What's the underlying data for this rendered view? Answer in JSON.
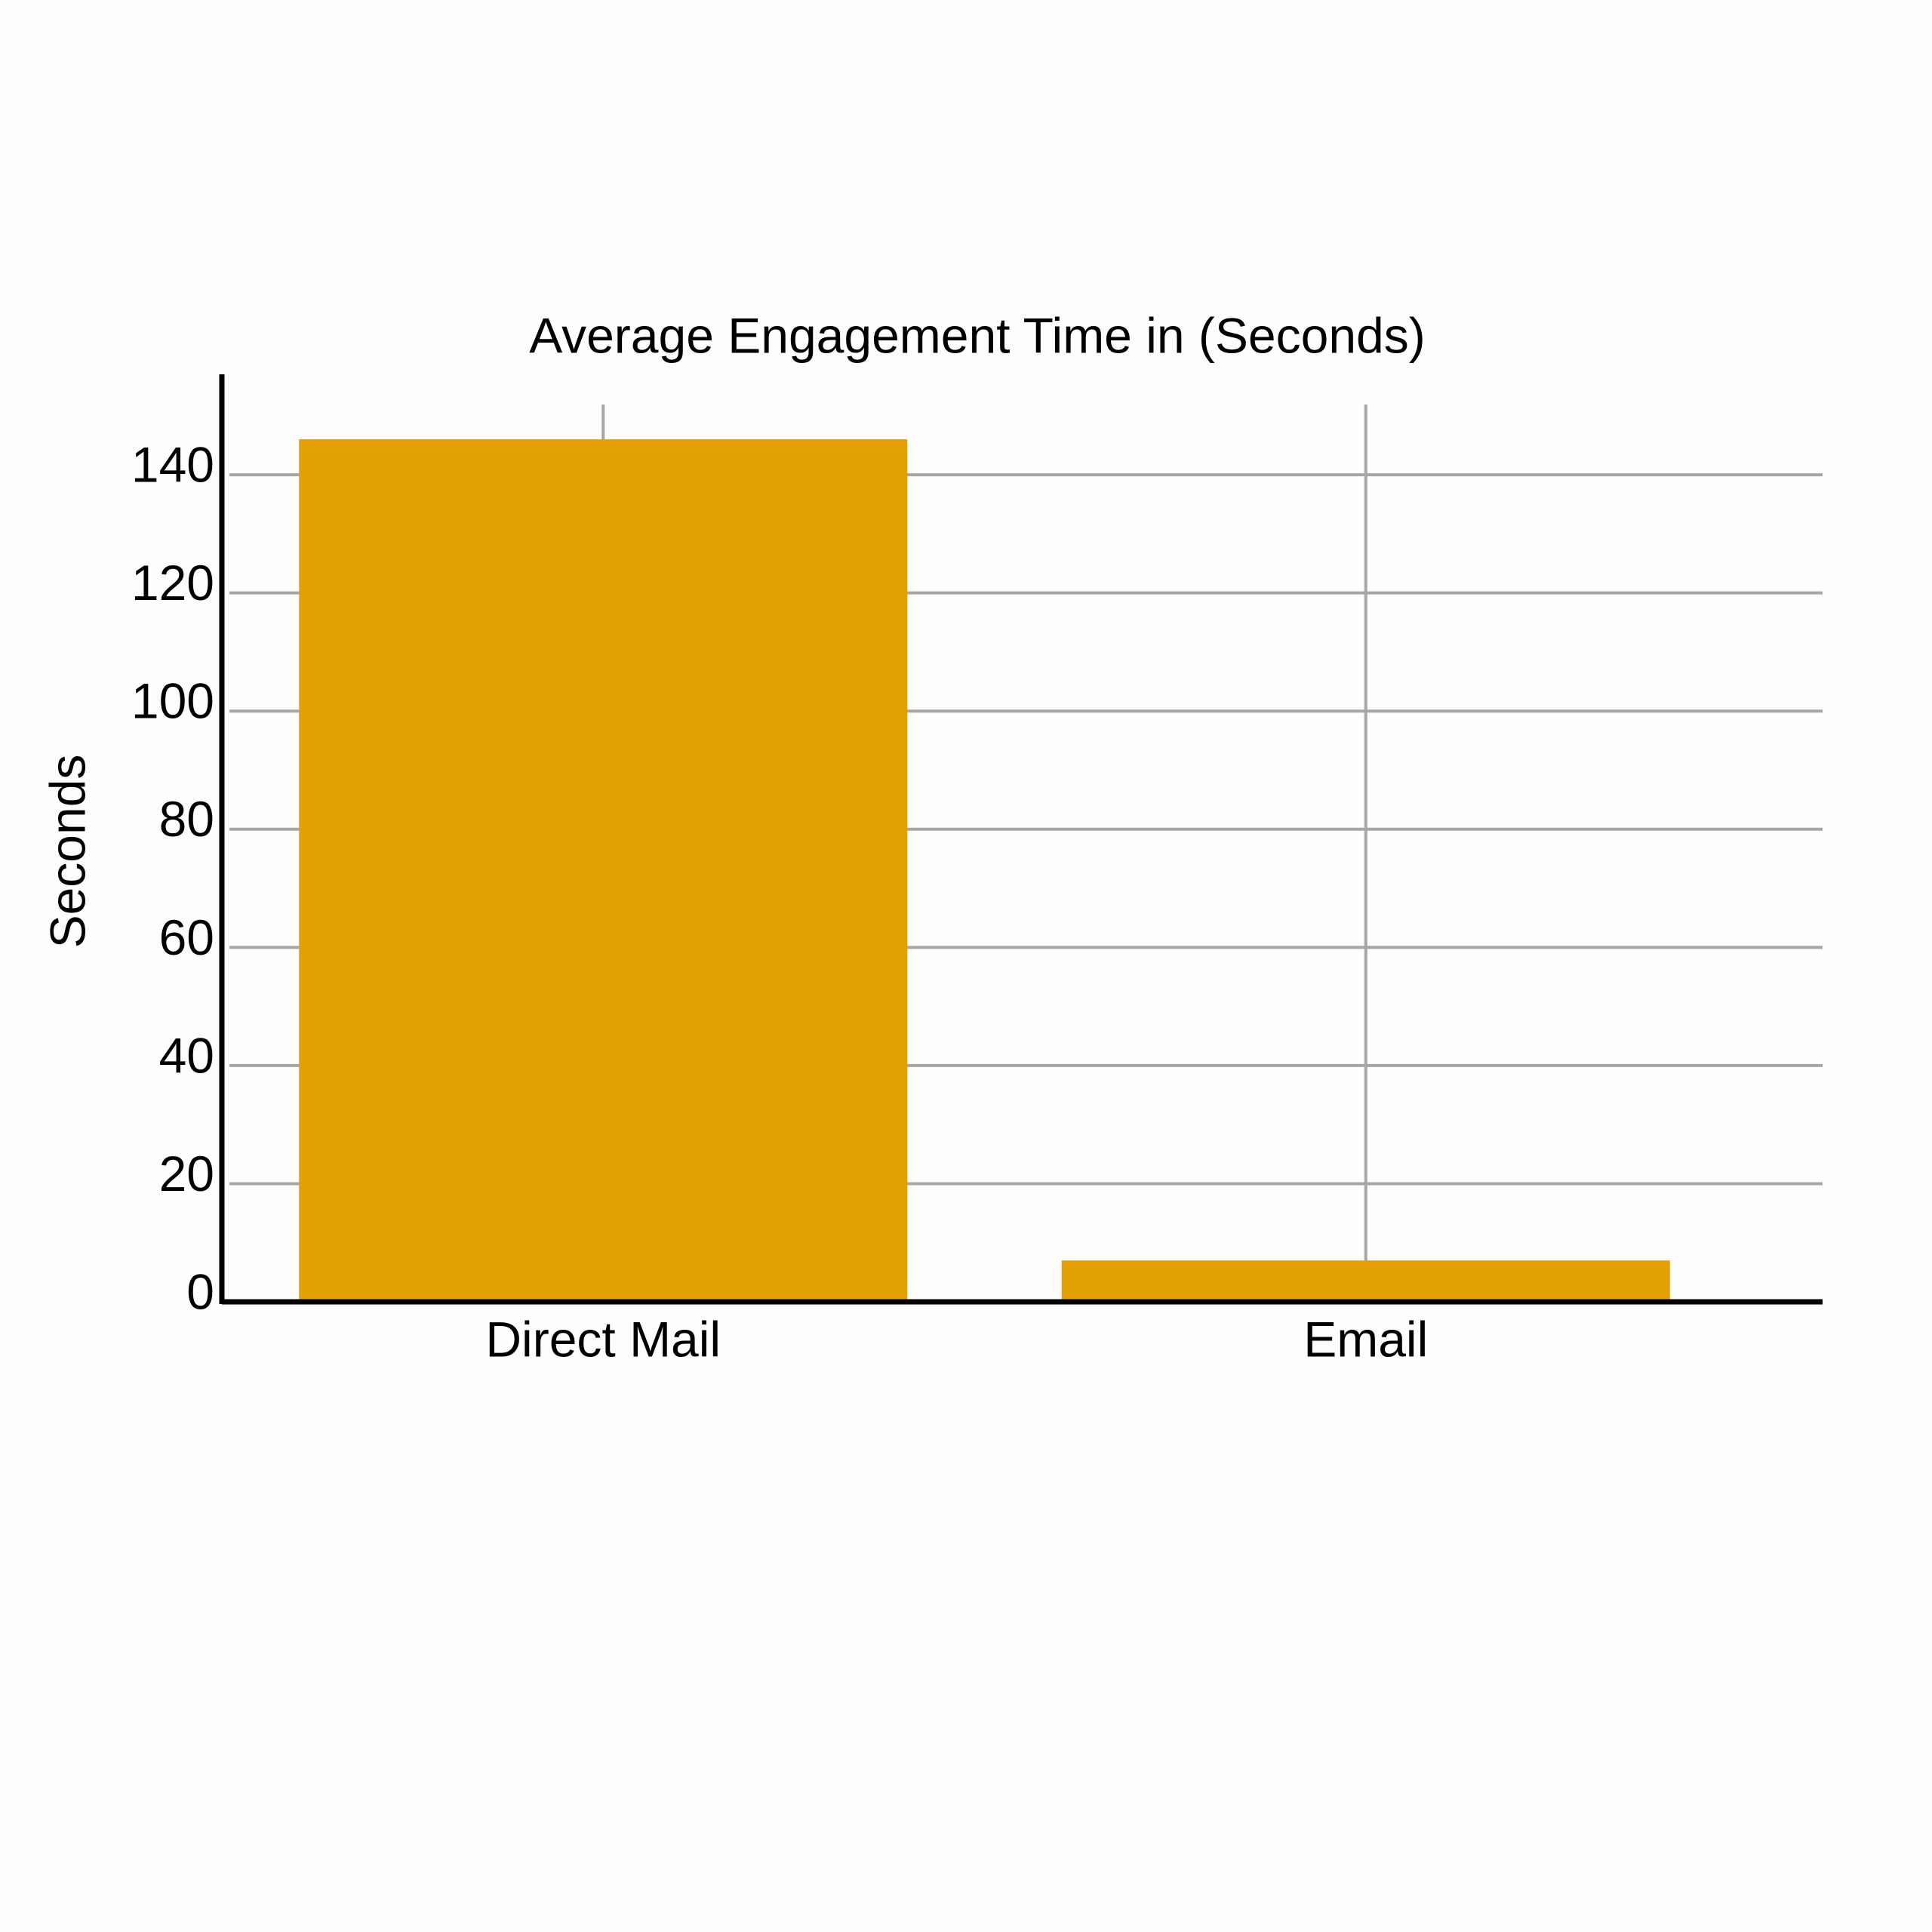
{
  "chart_data": {
    "type": "bar",
    "title": "Average Engagement Time in (Seconds)",
    "y_label": "Seconds",
    "categories": [
      "Direct Mail",
      "Email"
    ],
    "values": [
      146,
      7
    ],
    "color": "#e2a004",
    "ylim": [
      0,
      157
    ],
    "yticks": [
      0,
      20,
      40,
      60,
      80,
      100,
      120,
      140
    ],
    "grid": true
  }
}
